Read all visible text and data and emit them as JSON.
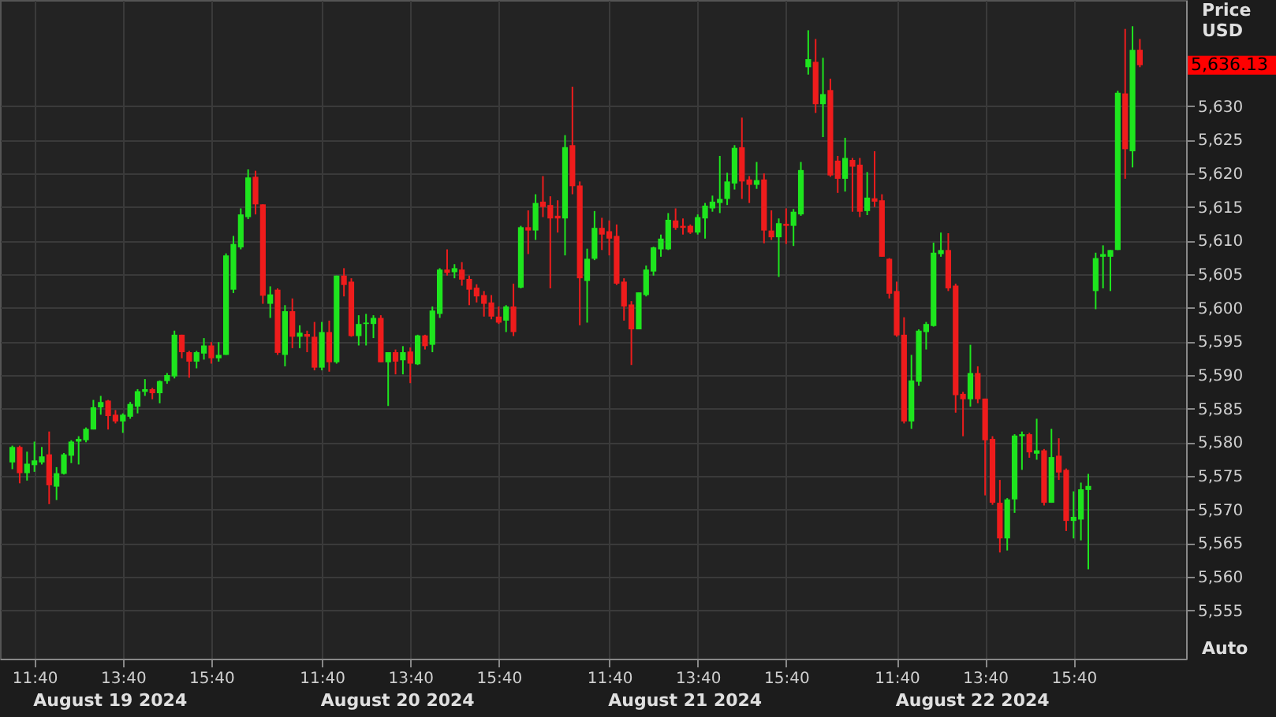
{
  "chart_data": {
    "type": "candlestick",
    "ylabel": "Price USD",
    "categories": [
      null,
      null,
      null,
      "11:40",
      null,
      null,
      null,
      null,
      null,
      null,
      null,
      null,
      null,
      null,
      null,
      "13:40",
      null,
      null,
      null,
      null,
      null,
      null,
      null,
      null,
      null,
      null,
      null,
      "15:40",
      null,
      null,
      null,
      null,
      null,
      null,
      null,
      null,
      null,
      null,
      null,
      null,
      null,
      null,
      "11:40",
      null,
      null,
      null,
      null,
      null,
      null,
      null,
      null,
      null,
      null,
      null,
      "13:40",
      null,
      null,
      null,
      null,
      null,
      null,
      null,
      null,
      null,
      null,
      null,
      "15:40",
      null,
      null,
      null,
      null,
      null,
      null,
      null,
      null,
      null,
      null,
      null,
      null,
      null,
      null,
      "11:40",
      null,
      null,
      null,
      null,
      null,
      null,
      null,
      null,
      null,
      null,
      null,
      "13:40",
      null,
      null,
      null,
      null,
      null,
      null,
      null,
      null,
      null,
      null,
      null,
      "15:40",
      null,
      null,
      null,
      null,
      null,
      null,
      null,
      null,
      null,
      null,
      null,
      null,
      null,
      null,
      "11:40",
      null,
      null,
      null,
      null,
      null,
      null,
      null,
      null,
      null,
      null,
      null,
      "13:40",
      null,
      null,
      null,
      null,
      null,
      null,
      null,
      null,
      null,
      null,
      null,
      "15:40",
      null,
      null,
      null,
      null,
      null,
      null,
      null,
      null,
      null
    ],
    "ohlc": [
      [
        5577,
        5579.5,
        5576,
        5579.3
      ],
      [
        5579.3,
        5579.5,
        5573.9,
        5575.4
      ],
      [
        5575.4,
        5578.6,
        5574.3,
        5576.8
      ],
      [
        5576.6,
        5580.1,
        5575.6,
        5577.3
      ],
      [
        5577,
        5579.3,
        5576.7,
        5577.9
      ],
      [
        5578.2,
        5581.6,
        5570.8,
        5573.6
      ],
      [
        5573.4,
        5576.3,
        5571.4,
        5575.4
      ],
      [
        5575.3,
        5578.4,
        5575.2,
        5578.2
      ],
      [
        5578,
        5580.3,
        5576.9,
        5580.1
      ],
      [
        5580.1,
        5580.9,
        5576.7,
        5580.5
      ],
      [
        5580.3,
        5582.2,
        5580,
        5582
      ],
      [
        5581.9,
        5586.3,
        5581.9,
        5585.2
      ],
      [
        5585.2,
        5586.9,
        5584.1,
        5586
      ],
      [
        5586.2,
        5586.3,
        5581.9,
        5583.9
      ],
      [
        5584.1,
        5584.8,
        5582.8,
        5583.1
      ],
      [
        5583.1,
        5584.3,
        5581.4,
        5584.1
      ],
      [
        5583.8,
        5586,
        5583.5,
        5585.7
      ],
      [
        5585.3,
        5587.9,
        5584.3,
        5587.6
      ],
      [
        5587.5,
        5589.4,
        5586.9,
        5587.9
      ],
      [
        5587.9,
        5588.1,
        5586.4,
        5587.3
      ],
      [
        5587.3,
        5589.2,
        5585.8,
        5589.1
      ],
      [
        5589.1,
        5590.3,
        5588.7,
        5590
      ],
      [
        5589.8,
        5596.6,
        5589.5,
        5596
      ],
      [
        5596,
        5596,
        5592.5,
        5593.4
      ],
      [
        5593.4,
        5593.6,
        5589.6,
        5592
      ],
      [
        5592,
        5593.6,
        5591,
        5593.4
      ],
      [
        5593.2,
        5595.5,
        5592.3,
        5594.4
      ],
      [
        5594.4,
        5594.9,
        5591.7,
        5592.5
      ],
      [
        5592.5,
        5594.9,
        5592,
        5593
      ],
      [
        5593,
        5608.1,
        5593,
        5607.8
      ],
      [
        5602.7,
        5610.7,
        5602.2,
        5609.5
      ],
      [
        5609,
        5614.8,
        5608.7,
        5613.9
      ],
      [
        5613.5,
        5620.6,
        5613.2,
        5619.4
      ],
      [
        5619.5,
        5620.4,
        5613.9,
        5615.4
      ],
      [
        5615.4,
        5615.4,
        5600.6,
        5601.8
      ],
      [
        5600.6,
        5603.2,
        5598.5,
        5602
      ],
      [
        5602.7,
        5602.9,
        5593,
        5593.3
      ],
      [
        5593,
        5600.4,
        5591.3,
        5599.5
      ],
      [
        5599.5,
        5601.4,
        5594,
        5595.7
      ],
      [
        5595.7,
        5597.4,
        5594,
        5596.3
      ],
      [
        5596.1,
        5596.6,
        5593.4,
        5595.7
      ],
      [
        5595.7,
        5597.9,
        5590.7,
        5591.1
      ],
      [
        5591.1,
        5597.9,
        5590.7,
        5596.4
      ],
      [
        5596.4,
        5598.1,
        5590.5,
        5591.9
      ],
      [
        5591.9,
        5604.8,
        5591.7,
        5604.8
      ],
      [
        5604.8,
        5605.9,
        5601.7,
        5603.4
      ],
      [
        5603.9,
        5604.4,
        5595.7,
        5595.8
      ],
      [
        5595.8,
        5598.9,
        5594.4,
        5597.6
      ],
      [
        5597.6,
        5599.1,
        5594.4,
        5597.8
      ],
      [
        5597.6,
        5598.9,
        5595.5,
        5598.5
      ],
      [
        5598.5,
        5598.9,
        5591.9,
        5591.9
      ],
      [
        5591.9,
        5593.4,
        5585.4,
        5593.4
      ],
      [
        5593.4,
        5593.8,
        5590.1,
        5592
      ],
      [
        5592.2,
        5594.3,
        5590.1,
        5593.4
      ],
      [
        5593.5,
        5594.1,
        5588.8,
        5591.7
      ],
      [
        5591.6,
        5596,
        5591.5,
        5595.9
      ],
      [
        5595.9,
        5596,
        5593.8,
        5594.3
      ],
      [
        5594.5,
        5600.2,
        5593.4,
        5599.6
      ],
      [
        5599.1,
        5605.9,
        5598.5,
        5605.7
      ],
      [
        5605.7,
        5608.7,
        5604.8,
        5605.2
      ],
      [
        5605.3,
        5606.5,
        5604.4,
        5605.9
      ],
      [
        5605.7,
        5606.8,
        5603.3,
        5604.2
      ],
      [
        5604.3,
        5604.8,
        5600.4,
        5602.7
      ],
      [
        5603,
        5603.5,
        5600.8,
        5601.7
      ],
      [
        5601.9,
        5602.5,
        5598.7,
        5600.6
      ],
      [
        5600.8,
        5601.9,
        5598.3,
        5598.7
      ],
      [
        5598.7,
        5600.2,
        5597.6,
        5597.8
      ],
      [
        5598.1,
        5600.4,
        5596.4,
        5600.2
      ],
      [
        5600.2,
        5603.6,
        5595.8,
        5596.4
      ],
      [
        5603,
        5612.2,
        5602.9,
        5612
      ],
      [
        5612,
        5614.5,
        5608,
        5611.5
      ],
      [
        5611.5,
        5616.9,
        5610.1,
        5615.6
      ],
      [
        5615.8,
        5619.6,
        5613.5,
        5615
      ],
      [
        5615.3,
        5616.6,
        5602.9,
        5613.3
      ],
      [
        5613.7,
        5616,
        5611.2,
        5613.3
      ],
      [
        5613.3,
        5625.7,
        5607.8,
        5623.9
      ],
      [
        5624.2,
        5632.9,
        5616.9,
        5618.1
      ],
      [
        5618.2,
        5618.8,
        5597.4,
        5604.4
      ],
      [
        5604,
        5608.8,
        5597.8,
        5607.3
      ],
      [
        5607.3,
        5614.4,
        5607.1,
        5611.9
      ],
      [
        5611.9,
        5613.4,
        5608.6,
        5610.9
      ],
      [
        5611.4,
        5613,
        5607.8,
        5610.3
      ],
      [
        5610.7,
        5612.4,
        5603.4,
        5603.6
      ],
      [
        5603.9,
        5604.4,
        5598.1,
        5600.2
      ],
      [
        5600.5,
        5601,
        5591.5,
        5596.8
      ],
      [
        5596.8,
        5602.3,
        5596.8,
        5602.3
      ],
      [
        5601.9,
        5606.3,
        5601.7,
        5605.7
      ],
      [
        5605.4,
        5609.1,
        5604.8,
        5609
      ],
      [
        5608.7,
        5610.9,
        5607.6,
        5610.3
      ],
      [
        5608.7,
        5614.1,
        5608.6,
        5613.1
      ],
      [
        5613,
        5614.8,
        5611.6,
        5611.9
      ],
      [
        5612.2,
        5613.3,
        5610.9,
        5611.9
      ],
      [
        5612.2,
        5612.4,
        5611,
        5611.2
      ],
      [
        5611.2,
        5613.9,
        5610.9,
        5613.5
      ],
      [
        5613.3,
        5615.6,
        5610.3,
        5615.2
      ],
      [
        5614.8,
        5616.7,
        5614.3,
        5615.8
      ],
      [
        5615.6,
        5622.6,
        5614.1,
        5616.2
      ],
      [
        5616.2,
        5620.1,
        5615.3,
        5618.8
      ],
      [
        5618.5,
        5624.2,
        5617.6,
        5623.8
      ],
      [
        5623.9,
        5628.3,
        5616.2,
        5618.8
      ],
      [
        5619.1,
        5619.6,
        5615.6,
        5618.3
      ],
      [
        5618.3,
        5621.7,
        5617.7,
        5619
      ],
      [
        5619.1,
        5620,
        5609.6,
        5611.5
      ],
      [
        5611.5,
        5614.5,
        5610.1,
        5610.5
      ],
      [
        5610.5,
        5613.3,
        5604.6,
        5612.6
      ],
      [
        5612.5,
        5614.8,
        5609.5,
        5612.2
      ],
      [
        5612.2,
        5614.7,
        5609.2,
        5614.3
      ],
      [
        5613.9,
        5621.7,
        5613.7,
        5620.5
      ],
      [
        5635.8,
        5641.3,
        5634.7,
        5637
      ],
      [
        5636.6,
        5640,
        5629,
        5630.3
      ],
      [
        5630.3,
        5637.2,
        5625.4,
        5631.8
      ],
      [
        5632.4,
        5634.1,
        5619.5,
        5619.7
      ],
      [
        5621.9,
        5622.6,
        5617.1,
        5619.2
      ],
      [
        5619.2,
        5625.3,
        5617.3,
        5622.3
      ],
      [
        5622,
        5622.3,
        5614.3,
        5621
      ],
      [
        5621.3,
        5622.3,
        5613.5,
        5614.3
      ],
      [
        5614.4,
        5620.2,
        5613.8,
        5616.4
      ],
      [
        5616.3,
        5623.3,
        5615,
        5615.8
      ],
      [
        5616,
        5616.9,
        5607.6,
        5607.6
      ],
      [
        5607.3,
        5607.4,
        5601.4,
        5602.1
      ],
      [
        5602.5,
        5603.9,
        5595.7,
        5595.9
      ],
      [
        5596,
        5598.6,
        5582.8,
        5583.1
      ],
      [
        5583.1,
        5593,
        5582,
        5589.2
      ],
      [
        5589,
        5596.8,
        5588.4,
        5596.6
      ],
      [
        5596.4,
        5597.9,
        5593.8,
        5597.6
      ],
      [
        5597.3,
        5609.7,
        5597.2,
        5608.2
      ],
      [
        5608,
        5611.2,
        5607.6,
        5608.6
      ],
      [
        5608.6,
        5611.1,
        5602.5,
        5602.9
      ],
      [
        5603.3,
        5603.6,
        5584.4,
        5587
      ],
      [
        5587.2,
        5587.5,
        5580.9,
        5586.4
      ],
      [
        5586.4,
        5594.5,
        5585.3,
        5590.3
      ],
      [
        5590.3,
        5591.3,
        5585.8,
        5586.4
      ],
      [
        5586.5,
        5586.5,
        5572.1,
        5580.3
      ],
      [
        5580.5,
        5580.9,
        5570.7,
        5571
      ],
      [
        5571,
        5574.4,
        5563.6,
        5565.7
      ],
      [
        5565.7,
        5571.7,
        5563.9,
        5571.5
      ],
      [
        5571.5,
        5581.2,
        5569.5,
        5581
      ],
      [
        5580.9,
        5581.6,
        5575.9,
        5581.2
      ],
      [
        5581.2,
        5581.4,
        5577.7,
        5578.5
      ],
      [
        5578.3,
        5583.5,
        5577.4,
        5578.8
      ],
      [
        5578.8,
        5579,
        5570.6,
        5571
      ],
      [
        5571,
        5582,
        5571,
        5577.8
      ],
      [
        5578,
        5580.6,
        5574.4,
        5575.5
      ],
      [
        5575.9,
        5576.1,
        5566.8,
        5568.3
      ],
      [
        5568.3,
        5572.7,
        5565.7,
        5568.9
      ],
      [
        5568.5,
        5574,
        5565.4,
        5573
      ],
      [
        5572.9,
        5575.3,
        5561.1,
        5573.5
      ],
      [
        5602.5,
        5608.2,
        5599.8,
        5607.4
      ],
      [
        5607.6,
        5609.3,
        5602.9,
        5608
      ],
      [
        5607.6,
        5608.6,
        5602.5,
        5608.6
      ],
      [
        5608.6,
        5632.3,
        5608.6,
        5632
      ],
      [
        5631.9,
        5641.5,
        5619.2,
        5623.6
      ],
      [
        5623.3,
        5641.9,
        5620.9,
        5638.4
      ],
      [
        5638.4,
        5640,
        5635.8,
        5636.1
      ]
    ],
    "colors": [
      "#1ee51e",
      "#ee1c1c",
      "#1ee51e",
      "#1ee51e",
      "#1ee51e",
      "#ee1c1c",
      "#1ee51e",
      "#1ee51e",
      "#1ee51e",
      "#1ee51e",
      "#1ee51e",
      "#1ee51e",
      "#1ee51e",
      "#ee1c1c",
      "#ee1c1c",
      "#1ee51e",
      "#1ee51e",
      "#1ee51e",
      "#1ee51e",
      "#ee1c1c",
      "#1ee51e",
      "#1ee51e",
      "#1ee51e",
      "#ee1c1c",
      "#ee1c1c",
      "#1ee51e",
      "#1ee51e",
      "#ee1c1c",
      "#1ee51e",
      "#1ee51e",
      "#1ee51e",
      "#1ee51e",
      "#1ee51e",
      "#ee1c1c",
      "#ee1c1c",
      "#1ee51e",
      "#ee1c1c",
      "#1ee51e",
      "#ee1c1c",
      "#1ee51e",
      "#ee1c1c",
      "#ee1c1c",
      "#1ee51e",
      "#ee1c1c",
      "#1ee51e",
      "#ee1c1c",
      "#ee1c1c",
      "#1ee51e",
      "#1ee51e",
      "#1ee51e",
      "#ee1c1c",
      "#1ee51e",
      "#ee1c1c",
      "#1ee51e",
      "#ee1c1c",
      "#1ee51e",
      "#ee1c1c",
      "#1ee51e",
      "#1ee51e",
      "#ee1c1c",
      "#1ee51e",
      "#ee1c1c",
      "#ee1c1c",
      "#ee1c1c",
      "#ee1c1c",
      "#ee1c1c",
      "#ee1c1c",
      "#1ee51e",
      "#ee1c1c",
      "#1ee51e",
      "#ee1c1c",
      "#1ee51e",
      "#ee1c1c",
      "#ee1c1c",
      "#ee1c1c",
      "#1ee51e",
      "#ee1c1c",
      "#ee1c1c",
      "#1ee51e",
      "#1ee51e",
      "#ee1c1c",
      "#ee1c1c",
      "#ee1c1c",
      "#ee1c1c",
      "#ee1c1c",
      "#1ee51e",
      "#1ee51e",
      "#1ee51e",
      "#1ee51e",
      "#1ee51e",
      "#ee1c1c",
      "#ee1c1c",
      "#ee1c1c",
      "#1ee51e",
      "#1ee51e",
      "#1ee51e",
      "#1ee51e",
      "#1ee51e",
      "#1ee51e",
      "#ee1c1c",
      "#ee1c1c",
      "#1ee51e",
      "#ee1c1c",
      "#ee1c1c",
      "#1ee51e",
      "#ee1c1c",
      "#1ee51e",
      "#1ee51e",
      "#1ee51e",
      "#ee1c1c",
      "#1ee51e",
      "#ee1c1c",
      "#ee1c1c",
      "#1ee51e",
      "#ee1c1c",
      "#ee1c1c",
      "#1ee51e",
      "#ee1c1c",
      "#ee1c1c",
      "#ee1c1c",
      "#ee1c1c",
      "#ee1c1c",
      "#1ee51e",
      "#1ee51e",
      "#1ee51e",
      "#1ee51e",
      "#1ee51e",
      "#ee1c1c",
      "#ee1c1c",
      "#ee1c1c",
      "#1ee51e",
      "#ee1c1c",
      "#ee1c1c",
      "#ee1c1c",
      "#ee1c1c",
      "#1ee51e",
      "#1ee51e",
      "#1ee51e",
      "#ee1c1c",
      "#1ee51e",
      "#ee1c1c",
      "#1ee51e",
      "#ee1c1c",
      "#ee1c1c",
      "#1ee51e",
      "#1ee51e",
      "#1ee51e",
      "#1ee51e",
      "#1ee51e",
      "#1ee51e",
      "#1ee51e",
      "#ee1c1c",
      "#1ee51e",
      "#ee1c1c"
    ],
    "ylim": [
      5547.8,
      5645.8
    ],
    "yticks": [
      {
        "value": 5555,
        "label": "5,555"
      },
      {
        "value": 5560,
        "label": "5,560"
      },
      {
        "value": 5565,
        "label": "5,565"
      },
      {
        "value": 5570,
        "label": "5,570"
      },
      {
        "value": 5575,
        "label": "5,575"
      },
      {
        "value": 5580,
        "label": "5,580"
      },
      {
        "value": 5585,
        "label": "5,585"
      },
      {
        "value": 5590,
        "label": "5,590"
      },
      {
        "value": 5595,
        "label": "5,595"
      },
      {
        "value": 5600,
        "label": "5,600"
      },
      {
        "value": 5605,
        "label": "5,605"
      },
      {
        "value": 5610,
        "label": "5,610"
      },
      {
        "value": 5615,
        "label": "5,615"
      },
      {
        "value": 5620,
        "label": "5,620"
      },
      {
        "value": 5625,
        "label": "5,625"
      },
      {
        "value": 5630,
        "label": "5,630"
      }
    ],
    "grid": true,
    "annotations": [
      "August 19 2024",
      "August 20 2024",
      "August 21 2024",
      "August 22 2024",
      "5,636.13",
      "Auto"
    ]
  }
}
